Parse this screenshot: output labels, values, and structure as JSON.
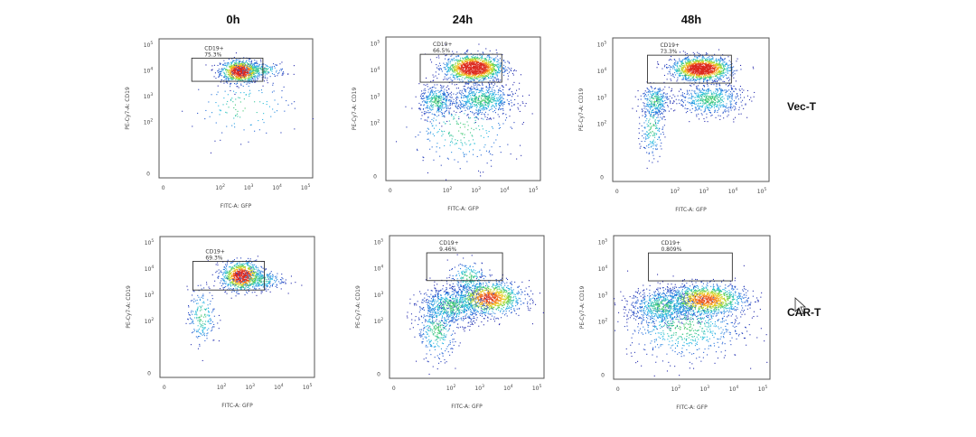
{
  "chart_data": {
    "type": "scatter",
    "subtype": "flow-cytometry-density-plot",
    "grid": false,
    "columns": [
      "0h",
      "24h",
      "48h"
    ],
    "rows": [
      "Vec-T",
      "CAR-T"
    ],
    "x_axis": {
      "label": "FITC-A: GFP",
      "scale": "biexponential",
      "ticks": [
        "0",
        "10",
        "10",
        "10",
        "10"
      ],
      "tick_exponents": [
        "",
        "2",
        "3",
        "4",
        "5"
      ]
    },
    "y_axis": {
      "label": "PE-Cy7-A: CD19",
      "scale": "biexponential",
      "ticks": [
        "0",
        "10",
        "10",
        "10",
        "10"
      ],
      "tick_exponents": [
        "",
        "2",
        "3",
        "4",
        "5"
      ]
    },
    "gate_name": "CD19+",
    "panels": [
      {
        "row": "Vec-T",
        "column": "0h",
        "gate_percent": "75.3%",
        "gate_x": [
          1.0,
          3.5
        ],
        "gate_y": [
          3.6,
          4.5
        ],
        "populations": [
          {
            "cx": 2.7,
            "cy": 4.0,
            "sx": 0.35,
            "sy": 0.22,
            "n": 900,
            "core": 0.9
          },
          {
            "cx": 3.4,
            "cy": 4.05,
            "sx": 0.45,
            "sy": 0.15,
            "n": 200,
            "core": 0.0
          },
          {
            "cx": 2.8,
            "cy": 2.6,
            "sx": 0.9,
            "sy": 0.6,
            "n": 120,
            "core": 0.0
          }
        ]
      },
      {
        "row": "Vec-T",
        "column": "24h",
        "gate_percent": "66.5%",
        "gate_x": [
          1.05,
          3.9
        ],
        "gate_y": [
          3.55,
          4.6
        ],
        "populations": [
          {
            "cx": 2.9,
            "cy": 4.1,
            "sx": 0.5,
            "sy": 0.25,
            "n": 1400,
            "core": 1.0
          },
          {
            "cx": 1.6,
            "cy": 2.85,
            "sx": 0.3,
            "sy": 0.3,
            "n": 350,
            "core": 0.0
          },
          {
            "cx": 3.2,
            "cy": 2.9,
            "sx": 0.55,
            "sy": 0.3,
            "n": 650,
            "core": 0.0
          },
          {
            "cx": 2.5,
            "cy": 1.8,
            "sx": 0.9,
            "sy": 0.7,
            "n": 250,
            "core": 0.0
          }
        ]
      },
      {
        "row": "Vec-T",
        "column": "48h",
        "gate_percent": "73.3%",
        "gate_x": [
          1.05,
          3.95
        ],
        "gate_y": [
          3.55,
          4.6
        ],
        "populations": [
          {
            "cx": 2.9,
            "cy": 4.1,
            "sx": 0.5,
            "sy": 0.22,
            "n": 1400,
            "core": 1.0
          },
          {
            "cx": 1.3,
            "cy": 2.9,
            "sx": 0.25,
            "sy": 0.3,
            "n": 300,
            "core": 0.0
          },
          {
            "cx": 3.2,
            "cy": 2.95,
            "sx": 0.55,
            "sy": 0.3,
            "n": 600,
            "core": 0.0
          },
          {
            "cx": 1.2,
            "cy": 1.9,
            "sx": 0.2,
            "sy": 0.6,
            "n": 200,
            "core": 0.0
          }
        ]
      },
      {
        "row": "CAR-T",
        "column": "0h",
        "gate_percent": "69.3%",
        "gate_x": [
          1.0,
          3.5
        ],
        "gate_y": [
          3.2,
          4.3
        ],
        "populations": [
          {
            "cx": 2.7,
            "cy": 3.75,
            "sx": 0.35,
            "sy": 0.28,
            "n": 900,
            "core": 0.85
          },
          {
            "cx": 3.3,
            "cy": 3.6,
            "sx": 0.45,
            "sy": 0.2,
            "n": 250,
            "core": 0.0
          },
          {
            "cx": 1.3,
            "cy": 2.2,
            "sx": 0.25,
            "sy": 0.55,
            "n": 200,
            "core": 0.0
          }
        ]
      },
      {
        "row": "CAR-T",
        "column": "24h",
        "gate_percent": "9.46%",
        "gate_x": [
          1.15,
          3.8
        ],
        "gate_y": [
          3.55,
          4.6
        ],
        "populations": [
          {
            "cx": 3.3,
            "cy": 2.9,
            "sx": 0.6,
            "sy": 0.32,
            "n": 1100,
            "core": 0.55
          },
          {
            "cx": 2.0,
            "cy": 2.6,
            "sx": 0.6,
            "sy": 0.35,
            "n": 700,
            "core": 0.0
          },
          {
            "cx": 2.6,
            "cy": 3.7,
            "sx": 0.35,
            "sy": 0.3,
            "n": 200,
            "core": 0.0
          },
          {
            "cx": 1.5,
            "cy": 1.7,
            "sx": 0.35,
            "sy": 0.6,
            "n": 350,
            "core": 0.0
          }
        ]
      },
      {
        "row": "CAR-T",
        "column": "48h",
        "gate_percent": "0.809%",
        "gate_x": [
          1.05,
          3.95
        ],
        "gate_y": [
          3.55,
          4.6
        ],
        "populations": [
          {
            "cx": 3.0,
            "cy": 2.85,
            "sx": 0.7,
            "sy": 0.3,
            "n": 1300,
            "core": 0.5
          },
          {
            "cx": 1.5,
            "cy": 2.6,
            "sx": 0.55,
            "sy": 0.35,
            "n": 700,
            "core": 0.0
          },
          {
            "cx": 2.3,
            "cy": 1.8,
            "sx": 1.0,
            "sy": 0.6,
            "n": 600,
            "core": 0.0
          }
        ]
      }
    ]
  }
}
